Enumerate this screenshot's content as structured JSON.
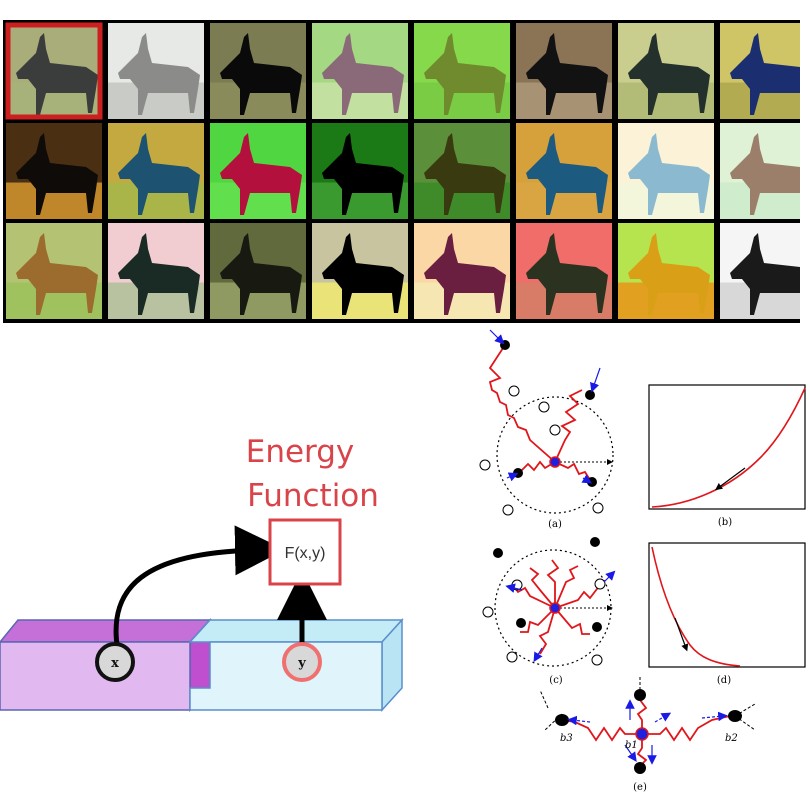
{
  "energy_panel": {
    "title_line1": "Energy",
    "title_line2": "Function",
    "function_label": "F(x,y)",
    "node_x": "x",
    "node_y": "y",
    "colors": {
      "title": "#d9434a",
      "box_x_front": "#e1b8f0",
      "box_x_top": "#c56fd8",
      "box_y_front": "#dff4fb",
      "box_y_top": "#c4ecf7",
      "node_fill": "#d8d8d8"
    }
  },
  "particle_panel": {
    "labels": [
      "(a)",
      "(b)",
      "(c)",
      "(d)",
      "(e)"
    ],
    "node_labels": [
      "b3",
      "b1",
      "b2"
    ],
    "colors": {
      "spring": "#e0161b",
      "arrow": "#1a1ae6",
      "center": "#2020e0"
    }
  },
  "image_grid": {
    "rows": 3,
    "cols": 8,
    "highlight_color": "#cc1f1f",
    "highlighted_index": 0,
    "tiles": [
      {
        "bg": "#a9ad7a",
        "fg": "#3a3d3c",
        "ground": "#a7b27a"
      },
      {
        "bg": "#e7e9e6",
        "fg": "#8b8c8a",
        "ground": "#c9cbc6"
      },
      {
        "bg": "#7b7c52",
        "fg": "#0a0a0a",
        "ground": "#8a8b5a"
      },
      {
        "bg": "#a5d883",
        "fg": "#8a6978",
        "ground": "#c2e09f"
      },
      {
        "bg": "#86d94a",
        "fg": "#6f8b2e",
        "ground": "#7acc44"
      },
      {
        "bg": "#8b7356",
        "fg": "#121212",
        "ground": "#a89274"
      },
      {
        "bg": "#c9cd8d",
        "fg": "#23302c",
        "ground": "#b3bc76"
      },
      {
        "bg": "#cfc566",
        "fg": "#1b2e70",
        "ground": "#b3ab52"
      },
      {
        "bg": "#4b2f13",
        "fg": "#0e0b08",
        "ground": "#c0862a"
      },
      {
        "bg": "#c4a940",
        "fg": "#1d5271",
        "ground": "#a9b548"
      },
      {
        "bg": "#50d640",
        "fg": "#b3103e",
        "ground": "#62df4c"
      },
      {
        "bg": "#1c7a16",
        "fg": "#000000",
        "ground": "#3a9a30"
      },
      {
        "bg": "#5c8f3a",
        "fg": "#3a3a10",
        "ground": "#3f8b2a"
      },
      {
        "bg": "#d6a13a",
        "fg": "#1d5a80",
        "ground": "#d9a542"
      },
      {
        "bg": "#fbf2d8",
        "fg": "#8bbad0",
        "ground": "#f4f6dc"
      },
      {
        "bg": "#dff2d6",
        "fg": "#9b7f6a",
        "ground": "#cfeccc"
      },
      {
        "bg": "#b3c373",
        "fg": "#9c6b2e",
        "ground": "#a0c25e"
      },
      {
        "bg": "#f1ccd1",
        "fg": "#1a2a24",
        "ground": "#b8c2a0"
      },
      {
        "bg": "#616a3d",
        "fg": "#181a12",
        "ground": "#8f9a62"
      },
      {
        "bg": "#c9c4a0",
        "fg": "#000000",
        "ground": "#eae377"
      },
      {
        "bg": "#fbd7a6",
        "fg": "#6a1f40",
        "ground": "#f6e6b2"
      },
      {
        "bg": "#f06d6a",
        "fg": "#2c3220",
        "ground": "#d87c68"
      },
      {
        "bg": "#b6e44e",
        "fg": "#d9a017",
        "ground": "#e1a020"
      },
      {
        "bg": "#f5f5f5",
        "fg": "#1a1a1a",
        "ground": "#d8d8d8"
      }
    ]
  }
}
